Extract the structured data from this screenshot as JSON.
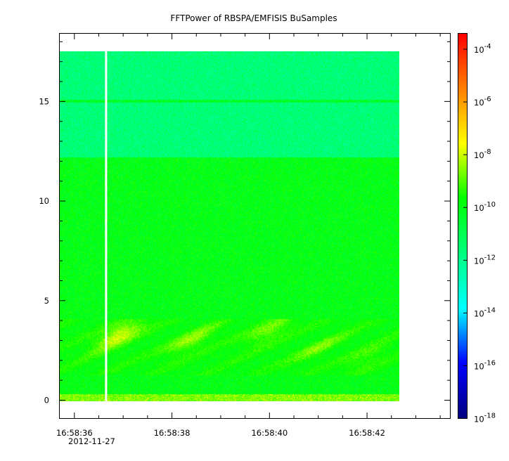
{
  "chart_data": {
    "type": "heatmap",
    "title": "FFTPower of RBSPA/EMFISIS  BuSamples",
    "xlabel": "",
    "ylabel": "",
    "x_axis": {
      "tick_labels": [
        "16:58:36",
        "16:58:38",
        "16:58:40",
        "16:58:42"
      ],
      "tick_values_sec": [
        36,
        38,
        40,
        42
      ],
      "range_sec": [
        35.7,
        43.7
      ],
      "date_label": "2012-11-27",
      "data_extent_sec": [
        35.7,
        42.65
      ],
      "gap_at_sec": 36.65
    },
    "y_axis": {
      "tick_labels": [
        "0",
        "5",
        "10",
        "15"
      ],
      "tick_values": [
        0,
        5,
        10,
        15
      ],
      "range": [
        -0.9,
        18.4
      ],
      "data_extent": [
        0,
        17.5
      ]
    },
    "colorbar": {
      "scale": "log",
      "range_exponent": [
        -18,
        -3.4
      ],
      "tick_labels": [
        {
          "base": "10",
          "exp": "-4"
        },
        {
          "base": "10",
          "exp": "-6"
        },
        {
          "base": "10",
          "exp": "-8"
        },
        {
          "base": "10",
          "exp": "-10"
        },
        {
          "base": "10",
          "exp": "-12"
        },
        {
          "base": "10",
          "exp": "-14"
        },
        {
          "base": "10",
          "exp": "-16"
        },
        {
          "base": "10",
          "exp": "-18"
        }
      ],
      "tick_exponents": [
        -4,
        -6,
        -8,
        -10,
        -12,
        -14,
        -16,
        -18
      ],
      "colormap": [
        "#00007f",
        "#0000ff",
        "#00ffff",
        "#00ff7f",
        "#00ff00",
        "#ffff00",
        "#ff7f00",
        "#ff0000"
      ]
    },
    "regions": [
      {
        "freq_range": [
          12.2,
          17.5
        ],
        "log_power": -11.6
      },
      {
        "freq_range": [
          0.35,
          12.2
        ],
        "log_power": -10.0
      },
      {
        "freq_range": [
          0,
          0.35
        ],
        "log_power": -8.6
      },
      {
        "freq_line": 15.0,
        "log_power": -10.3
      }
    ],
    "features": [
      {
        "time_sec": 36.9,
        "freq": 3.3,
        "log_power": -7.6
      },
      {
        "time_sec": 38.4,
        "freq": 3.0,
        "log_power": -8.4
      },
      {
        "time_sec": 40.0,
        "freq": 3.5,
        "log_power": -8.5
      },
      {
        "time_sec": 41.0,
        "freq": 2.6,
        "log_power": -8.9
      },
      {
        "time_sec": 42.0,
        "freq": 2.2,
        "log_power": -9.0
      }
    ]
  }
}
